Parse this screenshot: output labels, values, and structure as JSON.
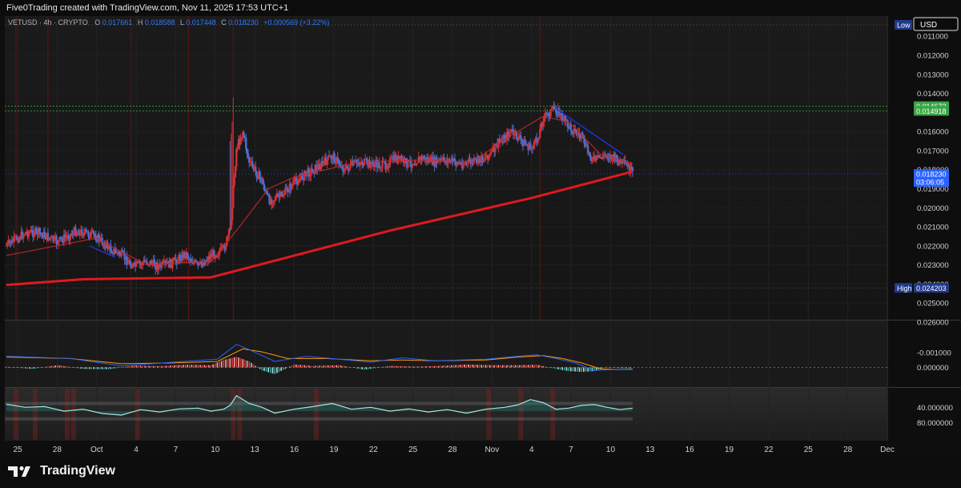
{
  "header": {
    "attribution": "Five0Trading created with TradingView.com, Nov 11, 2025 17:53 UTC+1"
  },
  "legend": {
    "symbol": "VETUSD · 4h · CRYPTO",
    "o_label": "O",
    "o_value": "0.017661",
    "h_label": "H",
    "h_value": "0.018588",
    "l_label": "L",
    "l_value": "0.017448",
    "c_label": "C",
    "c_value": "0.018230",
    "change": "+0.000569 (+3.22%)"
  },
  "brand": {
    "name": "TradingView"
  },
  "colors": {
    "up": "#d32f2f",
    "down": "#4a6fd0",
    "ema_slow": "#e0191f",
    "ema_fast": "#c62828",
    "trend": "#2233dd",
    "last_price": "#2962ff",
    "level_green": "#3aa445",
    "macd_line": "#2962ff",
    "signal_line": "#ff9800",
    "rsi": "#b5f0e8"
  },
  "chart_data": [
    {
      "type": "candlestick",
      "symbol": "VETUSD",
      "timeframe": "4h",
      "price_axis_inverted": true,
      "currency": "USD",
      "x_ticks": [
        "25",
        "28",
        "Oct",
        "4",
        "7",
        "10",
        "13",
        "16",
        "19",
        "22",
        "25",
        "28",
        "Nov",
        "4",
        "7",
        "10",
        "13",
        "16",
        "19",
        "22",
        "25",
        "28",
        "Dec"
      ],
      "y_ticks": [
        "0.011000",
        "0.012000",
        "0.013000",
        "0.014000",
        "0.016000",
        "0.017000",
        "0.018000",
        "0.019000",
        "0.020000",
        "0.021000",
        "0.022000",
        "0.023000",
        "0.024000",
        "0.025000",
        "0.026000"
      ],
      "y_tick_values": [
        0.011,
        0.012,
        0.013,
        0.014,
        0.016,
        0.017,
        0.018,
        0.019,
        0.02,
        0.021,
        0.022,
        0.023,
        0.024,
        0.025,
        0.026
      ],
      "ylim": [
        0.0103,
        0.0267
      ],
      "price_labels": [
        {
          "text": "Low",
          "value": 0.0104,
          "color": "#1f3a8a"
        },
        {
          "text": "0.014672",
          "value": 0.014672,
          "color": "#3aa445"
        },
        {
          "text": "0.014918",
          "value": 0.014918,
          "color": "#3aa445"
        },
        {
          "text": "0.018230",
          "sub": "03:06:05",
          "value": 0.01823,
          "color": "#2962ff"
        },
        {
          "text": "High",
          "value": 0.024203,
          "color": "#1f3a8a"
        },
        {
          "text": "0.024203",
          "value": 0.024203,
          "color": "#1f3a8a"
        }
      ],
      "currency_label": "USD",
      "close_path": [
        [
          0,
          0.022
        ],
        [
          3,
          0.0213
        ],
        [
          5,
          0.0213
        ],
        [
          8,
          0.0218
        ],
        [
          11,
          0.0212
        ],
        [
          14,
          0.0215
        ],
        [
          16,
          0.0221
        ],
        [
          18,
          0.0225
        ],
        [
          20,
          0.0231
        ],
        [
          22,
          0.0228
        ],
        [
          24,
          0.0231
        ],
        [
          26,
          0.0229
        ],
        [
          28,
          0.0224
        ],
        [
          30,
          0.0231
        ],
        [
          32,
          0.0225
        ],
        [
          34,
          0.0222
        ],
        [
          35,
          0.0212
        ],
        [
          36,
          0.0169
        ],
        [
          37,
          0.016
        ],
        [
          38,
          0.0176
        ],
        [
          40,
          0.0186
        ],
        [
          41,
          0.0196
        ],
        [
          43,
          0.0194
        ],
        [
          45,
          0.0187
        ],
        [
          47,
          0.0182
        ],
        [
          49,
          0.0178
        ],
        [
          51,
          0.0173
        ],
        [
          53,
          0.018
        ],
        [
          55,
          0.0176
        ],
        [
          57,
          0.0177
        ],
        [
          59,
          0.0178
        ],
        [
          61,
          0.0174
        ],
        [
          63,
          0.0177
        ],
        [
          65,
          0.0174
        ],
        [
          67,
          0.0176
        ],
        [
          69,
          0.0175
        ],
        [
          71,
          0.0177
        ],
        [
          73,
          0.0176
        ],
        [
          74,
          0.0175
        ],
        [
          76,
          0.0171
        ],
        [
          77,
          0.0166
        ],
        [
          79,
          0.016
        ],
        [
          80,
          0.0163
        ],
        [
          82,
          0.0169
        ],
        [
          83,
          0.0165
        ],
        [
          84,
          0.0153
        ],
        [
          85,
          0.015
        ],
        [
          86,
          0.0148
        ],
        [
          87,
          0.0153
        ],
        [
          88,
          0.0157
        ],
        [
          90,
          0.0163
        ],
        [
          91,
          0.0171
        ],
        [
          92,
          0.0175
        ],
        [
          94,
          0.0172
        ],
        [
          96,
          0.0176
        ],
        [
          97,
          0.0178
        ],
        [
          98,
          0.0182
        ]
      ],
      "x_index_to_date": {
        "0": "Sep 24",
        "35": "Oct 10",
        "61": "Oct 22",
        "81": "Nov 1",
        "98": "Nov 11"
      },
      "ema_200": [
        [
          0,
          0.02405
        ],
        [
          12,
          0.02375
        ],
        [
          32,
          0.02365
        ],
        [
          36,
          0.0233
        ],
        [
          60,
          0.0212
        ],
        [
          82,
          0.0195
        ],
        [
          98,
          0.0181
        ]
      ],
      "ema_fast": [
        [
          0,
          0.0225
        ],
        [
          14,
          0.0216
        ],
        [
          22,
          0.023
        ],
        [
          32,
          0.0228
        ],
        [
          36,
          0.0212
        ],
        [
          41,
          0.019
        ],
        [
          45,
          0.0184
        ],
        [
          55,
          0.0176
        ],
        [
          65,
          0.0175
        ],
        [
          73,
          0.0176
        ],
        [
          78,
          0.0164
        ],
        [
          84,
          0.0152
        ],
        [
          88,
          0.0155
        ],
        [
          93,
          0.0172
        ],
        [
          98,
          0.0177
        ]
      ],
      "trendlines": [
        {
          "from": [
            13,
            0.022
          ],
          "to": [
            17,
            0.0226
          ]
        },
        {
          "from": [
            86,
            0.0148
          ],
          "to": [
            96.5,
            0.0172
          ]
        }
      ]
    },
    {
      "type": "macd",
      "y_ticks": [
        "-0.001000",
        "0.000000"
      ],
      "y_tick_values": [
        -0.001,
        0.0
      ],
      "ylim": [
        0.0003,
        -0.0017
      ],
      "macd_line": [
        [
          0,
          -0.00075
        ],
        [
          10,
          -0.0006
        ],
        [
          18,
          -0.0001
        ],
        [
          26,
          -0.00035
        ],
        [
          33,
          -0.00055
        ],
        [
          36,
          -0.00155
        ],
        [
          38,
          -0.0012
        ],
        [
          42,
          -0.0004
        ],
        [
          47,
          -0.00075
        ],
        [
          52,
          -0.00055
        ],
        [
          57,
          -0.00035
        ],
        [
          62,
          -0.00065
        ],
        [
          67,
          -0.00045
        ],
        [
          75,
          -0.00055
        ],
        [
          80,
          -0.00075
        ],
        [
          83,
          -0.00085
        ],
        [
          86,
          -0.0006
        ],
        [
          89,
          -0.0003
        ],
        [
          92,
          0.0002
        ],
        [
          95,
          0.00015
        ],
        [
          98,
          0.00015
        ]
      ],
      "signal_line": [
        [
          0,
          -0.0007
        ],
        [
          10,
          -0.0006
        ],
        [
          18,
          -0.00025
        ],
        [
          26,
          -0.0003
        ],
        [
          33,
          -0.0004
        ],
        [
          37,
          -0.00125
        ],
        [
          40,
          -0.00105
        ],
        [
          44,
          -0.0006
        ],
        [
          50,
          -0.0006
        ],
        [
          57,
          -0.00045
        ],
        [
          62,
          -0.0005
        ],
        [
          67,
          -0.00045
        ],
        [
          75,
          -0.0005
        ],
        [
          80,
          -0.0007
        ],
        [
          84,
          -0.0008
        ],
        [
          87,
          -0.0006
        ],
        [
          90,
          -0.0003
        ],
        [
          93,
          0.0001
        ],
        [
          96,
          0.00015
        ],
        [
          98,
          0.00012
        ]
      ],
      "histogram": [
        [
          0,
          -5e-05
        ],
        [
          4,
          0.0001
        ],
        [
          8,
          -0.00015
        ],
        [
          12,
          0.0001
        ],
        [
          16,
          0.00012
        ],
        [
          20,
          -0.00012
        ],
        [
          24,
          -8e-05
        ],
        [
          28,
          -0.00018
        ],
        [
          32,
          -0.00015
        ],
        [
          34,
          -0.0005
        ],
        [
          36,
          -0.00072
        ],
        [
          38,
          -0.0004
        ],
        [
          40,
          0.0002
        ],
        [
          42,
          0.00045
        ],
        [
          45,
          -0.0002
        ],
        [
          48,
          -0.0001
        ],
        [
          52,
          -0.00015
        ],
        [
          56,
          0.00015
        ],
        [
          60,
          -0.0001
        ],
        [
          64,
          -5e-05
        ],
        [
          68,
          -0.0001
        ],
        [
          72,
          -0.0002
        ],
        [
          76,
          -0.00015
        ],
        [
          80,
          -0.00015
        ],
        [
          83,
          -0.00018
        ],
        [
          86,
          0.0001
        ],
        [
          88,
          0.00025
        ],
        [
          90,
          0.0003
        ],
        [
          92,
          0.00025
        ],
        [
          94,
          -5e-05
        ],
        [
          96,
          5e-05
        ],
        [
          98,
          6e-05
        ]
      ]
    },
    {
      "type": "oscillator",
      "y_ticks": [
        "40.000000",
        "80.000000"
      ],
      "y_tick_values": [
        40,
        80
      ],
      "ylim": [
        0,
        100
      ],
      "bands": [
        30,
        70
      ],
      "line": [
        [
          0,
          32
        ],
        [
          3,
          40
        ],
        [
          6,
          38
        ],
        [
          9,
          50
        ],
        [
          12,
          45
        ],
        [
          15,
          56
        ],
        [
          18,
          60
        ],
        [
          21,
          46
        ],
        [
          24,
          52
        ],
        [
          27,
          44
        ],
        [
          30,
          42
        ],
        [
          32,
          50
        ],
        [
          34,
          45
        ],
        [
          35,
          35
        ],
        [
          36,
          10
        ],
        [
          38,
          30
        ],
        [
          40,
          40
        ],
        [
          42,
          55
        ],
        [
          45,
          45
        ],
        [
          48,
          38
        ],
        [
          51,
          30
        ],
        [
          54,
          45
        ],
        [
          57,
          40
        ],
        [
          60,
          50
        ],
        [
          63,
          44
        ],
        [
          66,
          52
        ],
        [
          69,
          46
        ],
        [
          72,
          55
        ],
        [
          75,
          45
        ],
        [
          78,
          40
        ],
        [
          80,
          34
        ],
        [
          82,
          20
        ],
        [
          84,
          28
        ],
        [
          86,
          45
        ],
        [
          88,
          42
        ],
        [
          90,
          35
        ],
        [
          92,
          33
        ],
        [
          94,
          40
        ],
        [
          96,
          46
        ],
        [
          98,
          42
        ]
      ],
      "highlight_days": [
        1.5,
        4.5,
        9.5,
        10.5,
        20.5,
        35.5,
        36.5,
        48.5,
        75.5,
        80.5,
        85.5
      ]
    }
  ]
}
